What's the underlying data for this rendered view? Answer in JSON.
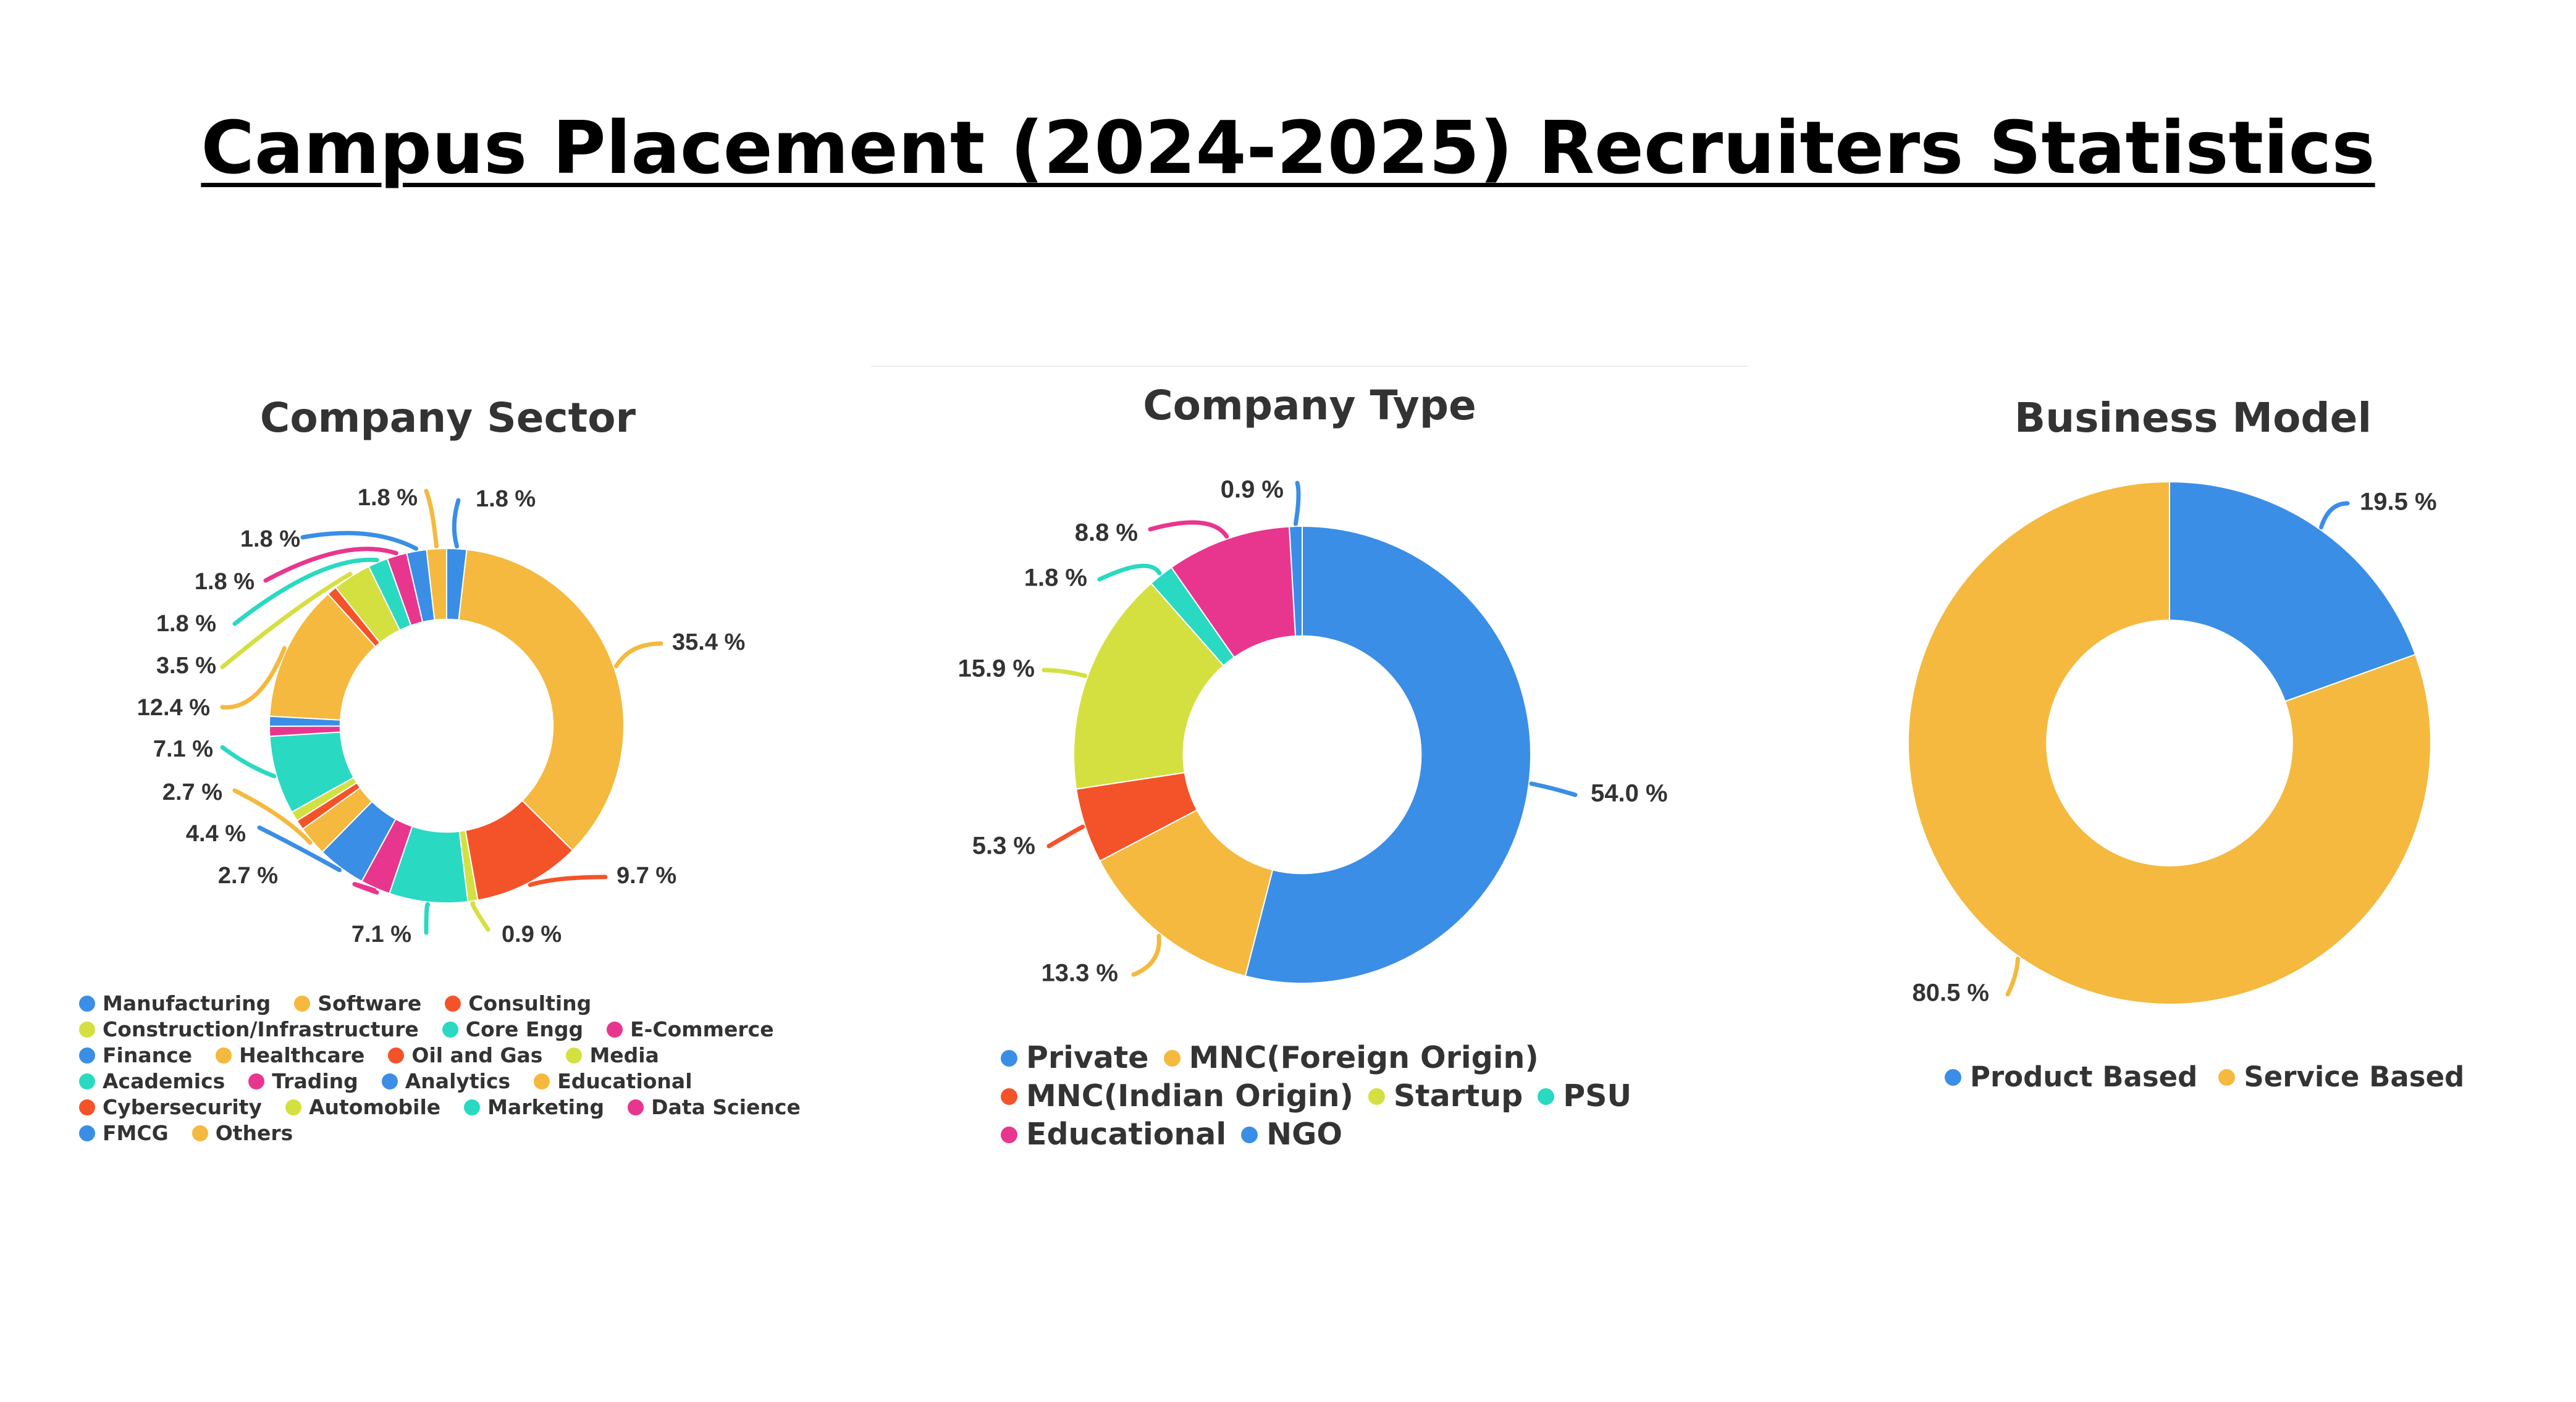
{
  "title": "Campus Placement (2024-2025) Recruiters Statistics",
  "chart_data": [
    {
      "type": "pie",
      "title": "Company Sector",
      "categories": [
        "Manufacturing",
        "Software",
        "Consulting",
        "Construction/Infrastructure",
        "Core Engg",
        "E-Commerce",
        "Finance",
        "Healthcare",
        "Oil and Gas",
        "Media",
        "Academics",
        "Trading",
        "Analytics",
        "Educational",
        "Cybersecurity",
        "Automobile",
        "Marketing",
        "Data Science",
        "FMCG",
        "Others"
      ],
      "colors": [
        "#3a8ee6",
        "#f4b93e",
        "#f4532a",
        "#d4e040",
        "#2ad9c2",
        "#e8368f",
        "#3a8ee6",
        "#f4b93e",
        "#f4532a",
        "#d4e040",
        "#2ad9c2",
        "#e8368f",
        "#3a8ee6",
        "#f4b93e",
        "#f4532a",
        "#d4e040",
        "#2ad9c2",
        "#e8368f",
        "#3a8ee6",
        "#f4b93e"
      ],
      "values": [
        1.8,
        35.4,
        9.7,
        0.9,
        7.1,
        2.7,
        4.4,
        2.7,
        0.9,
        0.9,
        7.1,
        0.9,
        0.9,
        12.4,
        0.9,
        3.5,
        1.8,
        1.8,
        1.8,
        1.8
      ],
      "data_labels": [
        "1.8 %",
        "35.4 %",
        "9.7 %",
        "0.9 %",
        "7.1 %",
        "2.7 %",
        "4.4 %",
        "2.7 %",
        "",
        "",
        "7.1 %",
        "",
        "",
        "12.4 %",
        "",
        "3.5 %",
        "1.8 %",
        "1.8 %",
        "1.8 %",
        "1.8 %"
      ],
      "inner_radius_ratio": 0.6,
      "legend_position": "bottom"
    },
    {
      "type": "pie",
      "title": "Company Type",
      "categories": [
        "Private",
        "MNC(Foreign Origin)",
        "MNC(Indian Origin)",
        "Startup",
        "PSU",
        "Educational",
        "NGO"
      ],
      "colors": [
        "#3a8ee6",
        "#f4b93e",
        "#f4532a",
        "#d4e040",
        "#2ad9c2",
        "#e8368f",
        "#3a8ee6"
      ],
      "values": [
        54.0,
        13.3,
        5.3,
        15.9,
        1.8,
        8.8,
        0.9
      ],
      "data_labels": [
        "54.0 %",
        "13.3 %",
        "5.3 %",
        "15.9 %",
        "1.8 %",
        "8.8 %",
        "0.9 %"
      ],
      "inner_radius_ratio": 0.52,
      "legend_position": "bottom"
    },
    {
      "type": "pie",
      "title": "Business Model",
      "categories": [
        "Product Based",
        "Service Based"
      ],
      "colors": [
        "#3a8ee6",
        "#f4b93e"
      ],
      "values": [
        19.5,
        80.5
      ],
      "data_labels": [
        "19.5 %",
        "80.5 %"
      ],
      "inner_radius_ratio": 0.47,
      "legend_position": "bottom"
    }
  ]
}
